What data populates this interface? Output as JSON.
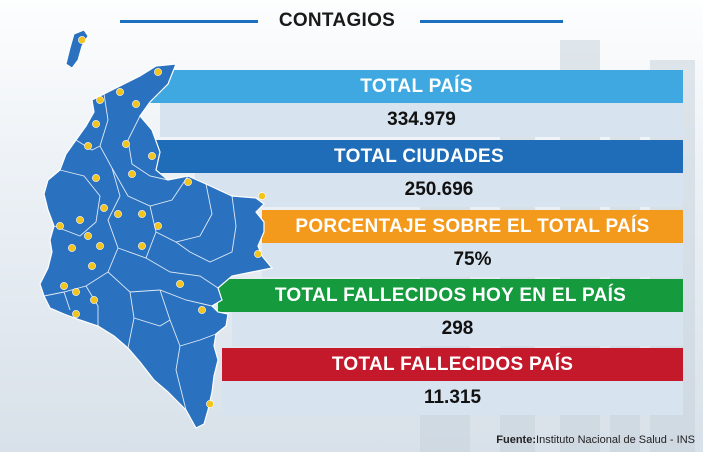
{
  "header": {
    "title": "CONTAGIOS"
  },
  "stats": [
    {
      "label": "TOTAL PAÍS",
      "value": "334.979",
      "color": "#3fa8e0"
    },
    {
      "label": "TOTAL CIUDADES",
      "value": "250.696",
      "color": "#1f6db8"
    },
    {
      "label": "PORCENTAJE SOBRE EL TOTAL PAÍS",
      "value": "75%",
      "color": "#f39a1c"
    },
    {
      "label": "TOTAL FALLECIDOS HOY EN EL PAÍS",
      "value": "298",
      "color": "#159a3e"
    },
    {
      "label": "TOTAL FALLECIDOS PAÍS",
      "value": "11.315",
      "color": "#c4182b"
    }
  ],
  "map": {
    "fill": "#2a72c0",
    "pin_color": "#f2c41d"
  },
  "source": {
    "label": "Fuente:",
    "text": "Instituto Nacional de Salud - INS"
  }
}
